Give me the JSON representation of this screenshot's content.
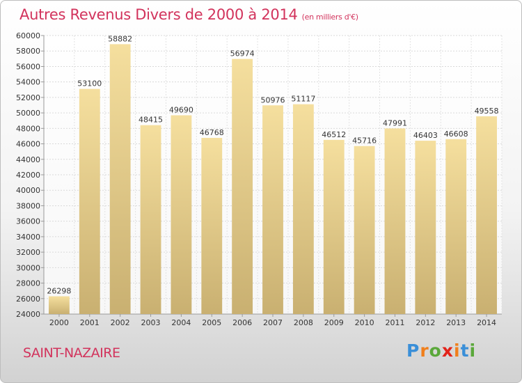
{
  "title": "Autres Revenus Divers de 2000 à 2014",
  "title_unit": "(en milliers d'€)",
  "location": "SAINT-NAZAIRE",
  "brand": {
    "letters": [
      "P",
      "r",
      "o",
      "x",
      "i",
      "t",
      "i"
    ],
    "colors": [
      "#3a8fd8",
      "#f07f1c",
      "#5aa83a",
      "#e2231a",
      "#f07f1c",
      "#3a8fd8",
      "#5aa83a"
    ]
  },
  "chart_data": {
    "type": "bar",
    "categories": [
      "2000",
      "2001",
      "2002",
      "2003",
      "2004",
      "2005",
      "2006",
      "2007",
      "2008",
      "2009",
      "2010",
      "2011",
      "2012",
      "2013",
      "2014"
    ],
    "values": [
      26298,
      53100,
      58882,
      48415,
      49690,
      46768,
      56974,
      50976,
      51117,
      46512,
      45716,
      47991,
      46403,
      46608,
      49558
    ],
    "ylim": [
      24000,
      60000
    ],
    "yticks": [
      "24000",
      "26000",
      "28000",
      "30000",
      "32000",
      "34000",
      "36000",
      "38000",
      "40000",
      "42000",
      "44000",
      "46000",
      "48000",
      "50000",
      "52000",
      "54000",
      "56000",
      "58000",
      "60000"
    ],
    "grid": true,
    "bar_color": "#e8cd86"
  }
}
